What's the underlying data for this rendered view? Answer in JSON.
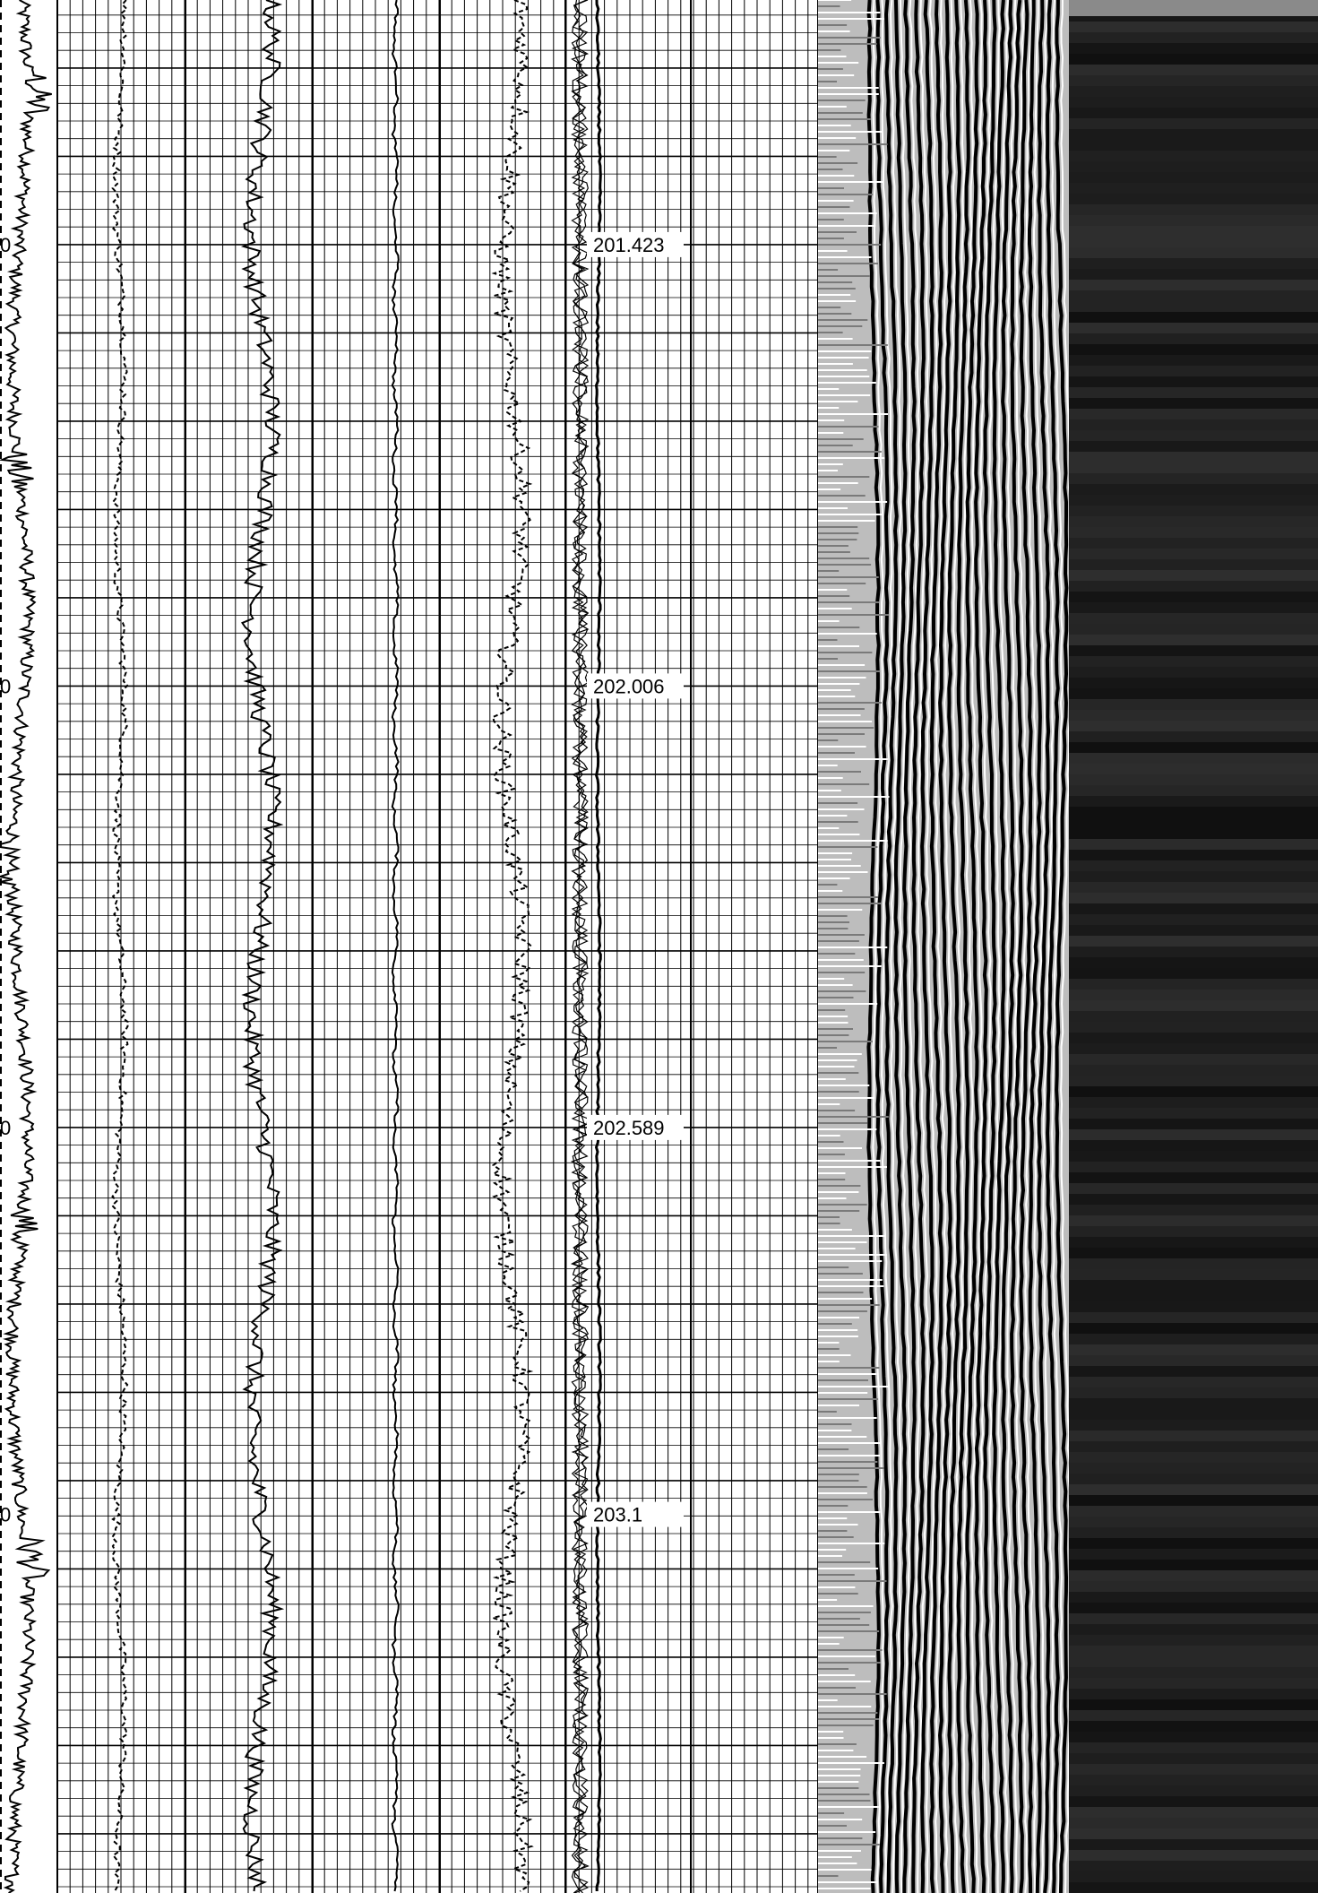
{
  "chart_data": {
    "type": "line",
    "description_free": true,
    "depth_axis": {
      "tick_labels": [
        "201.423",
        "202.006",
        "202.589",
        "203.1"
      ],
      "ticks": [
        201.423,
        202.006,
        202.589,
        203.1
      ],
      "range": [
        201.1,
        203.6
      ],
      "direction": "down"
    },
    "edge_labels": [
      "0",
      "0",
      "0",
      "0"
    ],
    "grid": true,
    "tracks": [
      {
        "kind": "waveform",
        "style": "solid",
        "center": 0.0,
        "amp": 0.5,
        "freq": 90,
        "bursts": [
          201.22,
          201.72,
          202.24,
          202.73,
          203.16
        ]
      },
      {
        "kind": "curve",
        "style": "dashed",
        "center": 0.28,
        "amp": 0.12,
        "freq": 60
      },
      {
        "kind": "curve",
        "style": "solid",
        "center": 0.5,
        "amp": 0.3,
        "freq": 70
      },
      {
        "kind": "curve",
        "style": "solid",
        "center": 0.6,
        "amp": 0.05,
        "freq": 15
      },
      {
        "kind": "curve",
        "style": "dashed",
        "center": 0.45,
        "amp": 0.3,
        "freq": 80
      },
      {
        "kind": "bundle",
        "style": "solid",
        "center": 0.2,
        "amp": 0.06,
        "freq": 70
      }
    ],
    "images": [
      {
        "kind": "variable-density",
        "shade": "grey-banded"
      },
      {
        "kind": "amplitude-map",
        "shade": "dark"
      }
    ],
    "colors": {
      "grid": "#000000",
      "curve": "#000000",
      "vdl_background": "#bdbdbd",
      "dark_panel": "#1c1c1c"
    }
  }
}
